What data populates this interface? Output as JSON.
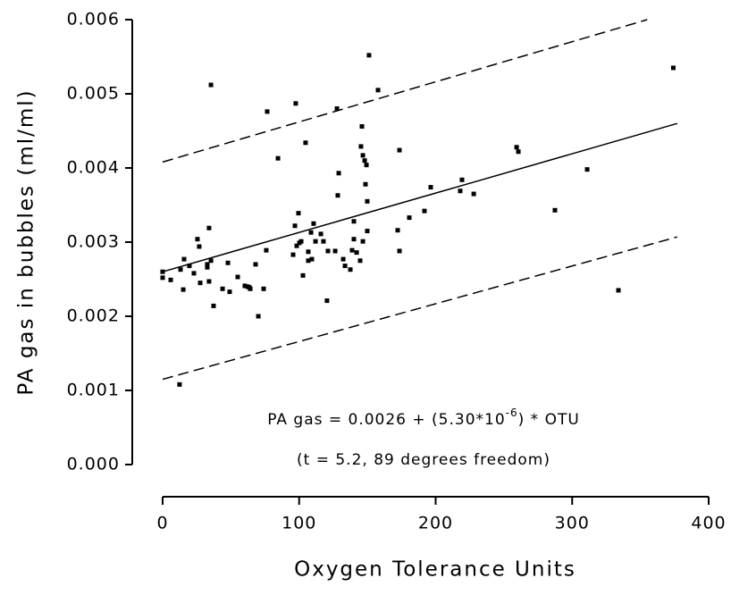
{
  "chart_data": {
    "type": "scatter",
    "xlabel": "Oxygen Tolerance Units",
    "ylabel": "PA gas in bubbles (ml/ml)",
    "xlim": [
      0,
      400
    ],
    "ylim": [
      0,
      0.006
    ],
    "xticks": [
      0,
      100,
      200,
      300,
      400
    ],
    "yticks": [
      {
        "value": 0,
        "label": "0.000"
      },
      0.001,
      0.002,
      0.003,
      0.004,
      0.005,
      0.006
    ],
    "color": "#000000",
    "x": [
      0,
      0,
      5.9,
      12.4,
      13.1,
      15.1,
      15.7,
      19.6,
      22.9,
      25.5,
      26.8,
      27.5,
      32.7,
      32.7,
      34.0,
      34.0,
      35.4,
      37.3,
      35.4,
      43.9,
      47.8,
      49.1,
      55.0,
      60.2,
      62.2,
      63.5,
      64.2,
      68.1,
      70.1,
      74.0,
      75.9,
      76.6,
      84.5,
      95.6,
      96.9,
      97.5,
      98.2,
      99.5,
      100.2,
      101.5,
      102.8,
      104.7,
      106.7,
      106.7,
      108.7,
      109.3,
      110.6,
      112.0,
      115.9,
      117.8,
      120.4,
      121.1,
      126.4,
      127.7,
      128.3,
      129.0,
      132.3,
      133.6,
      137.5,
      138.8,
      140.1,
      140.1,
      142.1,
      144.7,
      145.3,
      146.0,
      146.7,
      146.7,
      148.0,
      148.6,
      149.3,
      149.9,
      149.9,
      151.2,
      157.8,
      172.2,
      173.5,
      173.5,
      180.7,
      191.8,
      196.4,
      218.0,
      219.3,
      227.9,
      259.3,
      260.6,
      287.4,
      311.0,
      333.9,
      374.1
    ],
    "values": [
      0.0026,
      0.00252,
      0.00249,
      0.00108,
      0.00263,
      0.00236,
      0.00277,
      0.00268,
      0.00258,
      0.00304,
      0.00294,
      0.00245,
      0.00266,
      0.0027,
      0.00247,
      0.00319,
      0.00512,
      0.00214,
      0.00275,
      0.00237,
      0.00272,
      0.00233,
      0.00253,
      0.00241,
      0.0024,
      0.00239,
      0.00237,
      0.0027,
      0.002,
      0.00237,
      0.00289,
      0.00476,
      0.00413,
      0.00283,
      0.00322,
      0.00487,
      0.00295,
      0.00339,
      0.00299,
      0.00301,
      0.00255,
      0.00434,
      0.00287,
      0.00275,
      0.00313,
      0.00277,
      0.00325,
      0.00301,
      0.00311,
      0.00301,
      0.00221,
      0.00288,
      0.00288,
      0.0048,
      0.00363,
      0.00393,
      0.00277,
      0.00268,
      0.00263,
      0.00289,
      0.00328,
      0.00304,
      0.00286,
      0.00275,
      0.00429,
      0.00456,
      0.00301,
      0.00417,
      0.0041,
      0.00378,
      0.00404,
      0.00355,
      0.00315,
      0.00552,
      0.00505,
      0.00316,
      0.00424,
      0.00288,
      0.00333,
      0.00342,
      0.00374,
      0.00369,
      0.00384,
      0.00365,
      0.00428,
      0.00422,
      0.00343,
      0.00398,
      0.00235,
      0.00535
    ],
    "lines": [
      {
        "x": [
          0,
          377
        ],
        "values": [
          0.0026,
          0.0046
        ],
        "dash": false
      },
      {
        "x": [
          0,
          355
        ],
        "values": [
          0.00408,
          0.006
        ],
        "dash": true
      },
      {
        "x": [
          0,
          377
        ],
        "values": [
          0.00115,
          0.00307
        ],
        "dash": true
      }
    ],
    "annotations": [
      {
        "text": "PA gas = 0.0026 + (5.30*10",
        "sup": "-6",
        "rest": ") * OTU"
      },
      {
        "text": "(t = 5.2, 89 degrees freedom)"
      }
    ]
  }
}
